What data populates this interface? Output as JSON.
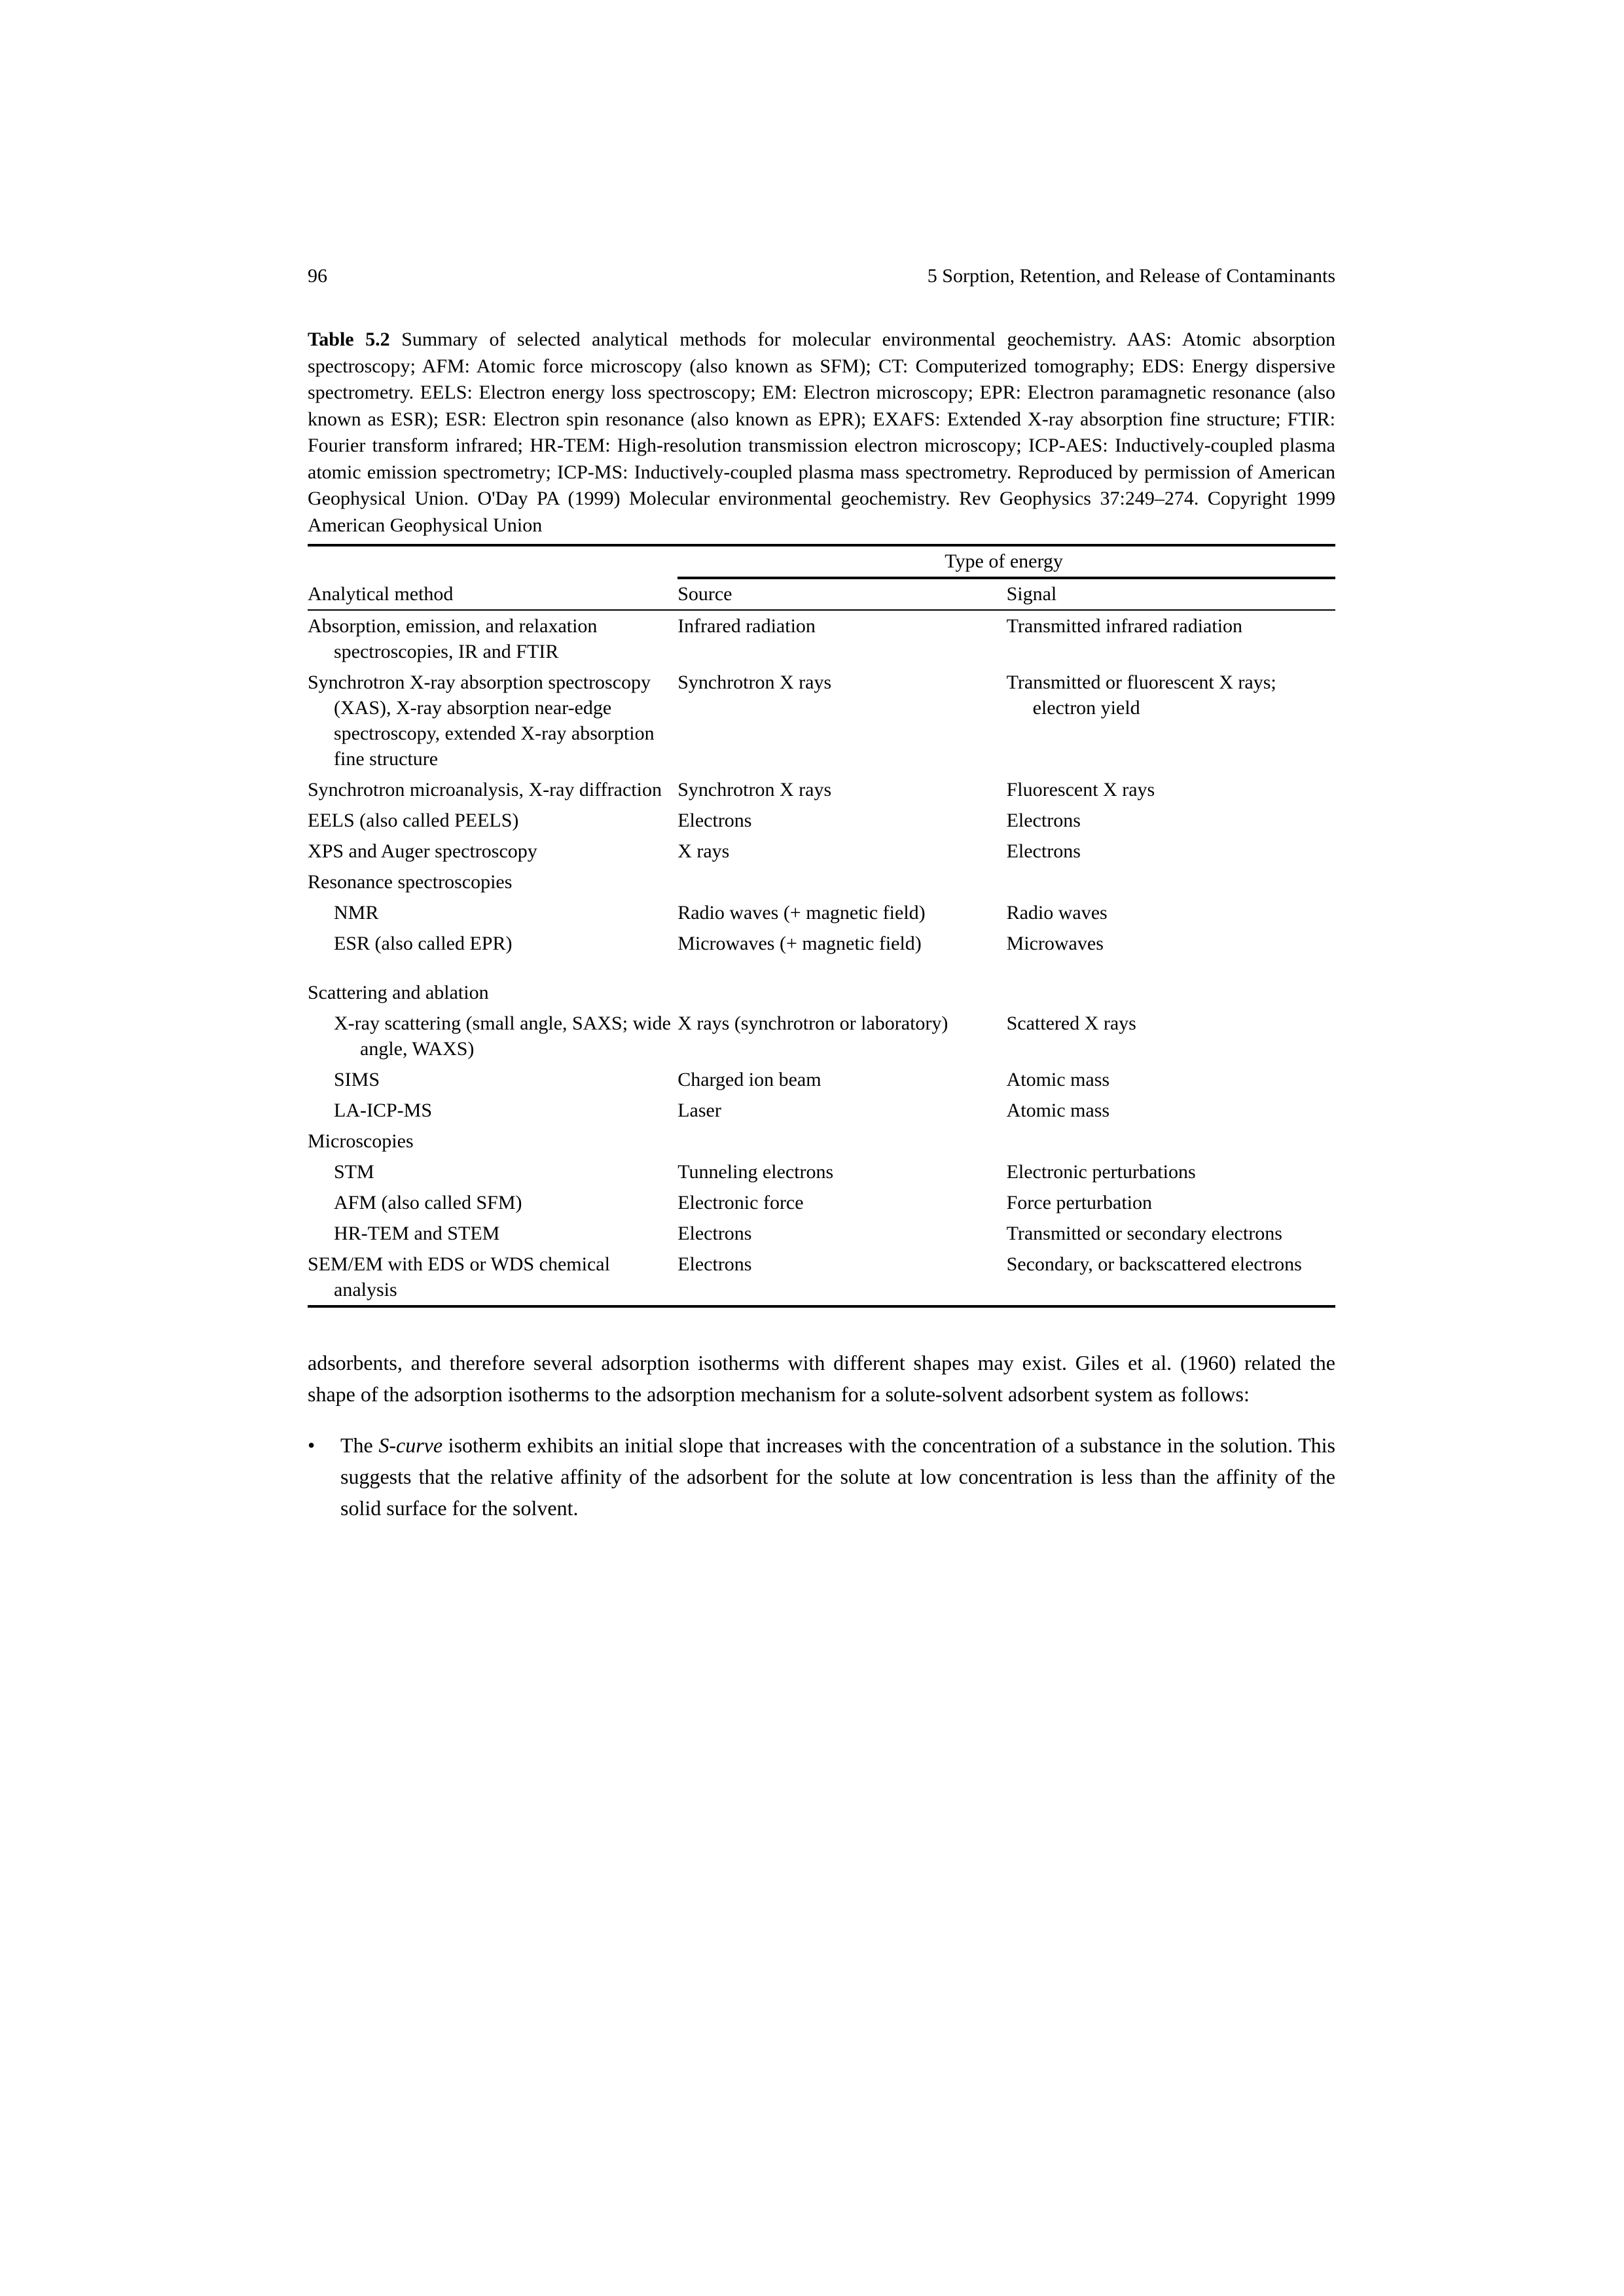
{
  "pageNumber": "96",
  "headerTitle": "5 Sorption, Retention, and Release of Contaminants",
  "tableCaption": {
    "label": "Table 5.2",
    "text": "Summary of selected analytical methods for molecular environmental geochemistry. AAS: Atomic absorption spectroscopy; AFM: Atomic force microscopy (also known as SFM); CT: Computerized tomography; EDS: Energy dispersive spectrometry. EELS: Electron energy loss spectroscopy; EM: Electron microscopy; EPR: Electron paramagnetic resonance (also known as ESR); ESR: Electron spin resonance (also known as EPR); EXAFS: Extended X-ray absorption fine structure; FTIR: Fourier transform infrared; HR-TEM: High-resolution transmission electron microscopy; ICP-AES: Inductively-coupled plasma atomic emission spectrometry; ICP-MS: Inductively-coupled plasma mass spectrometry. Reproduced by permission of American Geophysical Union. O'Day PA (1999) Molecular environmental geochemistry. Rev Geophysics 37:249–274. Copyright 1999 American Geophysical Union"
  },
  "tableHeaders": {
    "col1": "Analytical method",
    "super": "Type of energy",
    "col2": "Source",
    "col3": "Signal"
  },
  "rows": [
    {
      "method": "Absorption, emission, and relaxation spectroscopies, IR and FTIR",
      "source": "Infrared radiation",
      "signal": "Transmitted infrared radiation",
      "methodIndent": true
    },
    {
      "method": "Synchrotron X-ray absorption spectroscopy (XAS), X-ray absorption near-edge spectroscopy, extended X-ray absorption fine structure",
      "source": "Synchrotron X rays",
      "signal": "Transmitted or fluorescent X rays; electron yield",
      "methodIndent": true,
      "signalIndent": true
    },
    {
      "method": "Synchrotron microanalysis, X-ray diffraction",
      "source": "Synchrotron X rays",
      "signal": "Fluorescent X rays",
      "methodIndent": true
    },
    {
      "method": "EELS (also called PEELS)",
      "source": "Electrons",
      "signal": "Electrons"
    },
    {
      "method": "XPS and Auger spectroscopy",
      "source": "X rays",
      "signal": "Electrons"
    },
    {
      "method": "Resonance spectroscopies",
      "source": "",
      "signal": ""
    },
    {
      "method": "NMR",
      "source": "Radio waves (+ magnetic field)",
      "signal": "Radio waves",
      "methodSub": true,
      "sourceIndent": true
    },
    {
      "method": "ESR (also called EPR)",
      "source": "Microwaves (+ magnetic field)",
      "signal": "Microwaves",
      "methodSub": true
    },
    {
      "method": "Scattering and ablation",
      "source": "",
      "signal": "",
      "spaceAbove": true
    },
    {
      "method": "X-ray scattering (small angle, SAXS; wide angle, WAXS)",
      "source": "X rays (synchrotron or laboratory)",
      "signal": "Scattered X rays",
      "methodSub": true,
      "methodIndent": true,
      "sourceIndent": true
    },
    {
      "method": "SIMS",
      "source": "Charged ion beam",
      "signal": "Atomic mass",
      "methodSub": true
    },
    {
      "method": "LA-ICP-MS",
      "source": "Laser",
      "signal": "Atomic mass",
      "methodSub": true
    },
    {
      "method": "Microscopies",
      "source": "",
      "signal": ""
    },
    {
      "method": "STM",
      "source": "Tunneling electrons",
      "signal": "Electronic perturbations",
      "methodSub": true
    },
    {
      "method": "AFM (also called SFM)",
      "source": "Electronic force",
      "signal": "Force perturbation",
      "methodSub": true
    },
    {
      "method": "HR-TEM and STEM",
      "source": "Electrons",
      "signal": "Transmitted or secondary electrons",
      "methodSub": true,
      "signalIndent": true
    },
    {
      "method": "SEM/EM with EDS or WDS chemical analysis",
      "source": "Electrons",
      "signal": "Secondary, or backscattered electrons",
      "methodIndent": true,
      "signalIndent": true
    }
  ],
  "bodyParagraph": "adsorbents, and therefore several adsorption isotherms with different shapes may exist. Giles et al. (1960) related the shape of the adsorption isotherms to the adsorption mechanism for a solute-solvent adsorbent system as follows:",
  "bullet": {
    "prefix": "The ",
    "italic": "S-curve",
    "rest": " isotherm exhibits an initial slope that increases with the concentration of a substance in the solution. This suggests that the relative affinity of the adsorbent for the solute at low concentration is less than the affinity of the solid surface for the solvent."
  }
}
